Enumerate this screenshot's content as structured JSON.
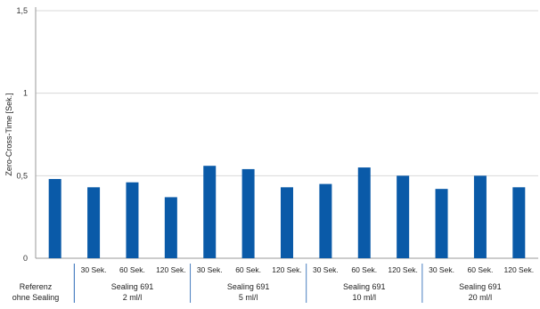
{
  "chart_data": {
    "type": "bar",
    "ylabel": "Zero-Cross-Time [Sek.]",
    "ylim": [
      0,
      1.5
    ],
    "yticks": [
      {
        "value": 0,
        "label": "0"
      },
      {
        "value": 0.5,
        "label": "0,5"
      },
      {
        "value": 1,
        "label": "1"
      },
      {
        "value": 1.5,
        "label": "1,5"
      }
    ],
    "grid": true,
    "bar_color": "#0a5aa8",
    "categories": [
      "",
      "30 Sek.",
      "60 Sek.",
      "120 Sek.",
      "30 Sek.",
      "60 Sek.",
      "120 Sek.",
      "30 Sek.",
      "60 Sek.",
      "120 Sek.",
      "30 Sek.",
      "60 Sek.",
      "120 Sek."
    ],
    "values": [
      0.48,
      0.43,
      0.46,
      0.37,
      0.56,
      0.54,
      0.43,
      0.45,
      0.55,
      0.5,
      0.42,
      0.5,
      0.43
    ],
    "groups": [
      {
        "lines": [
          "Referenz",
          "ohne Sealing"
        ],
        "start": 0,
        "end": 0
      },
      {
        "lines": [
          "Sealing 691",
          "2 ml/l"
        ],
        "start": 1,
        "end": 3
      },
      {
        "lines": [
          "Sealing 691",
          "5 ml/l"
        ],
        "start": 4,
        "end": 6
      },
      {
        "lines": [
          "Sealing 691",
          "10 ml/l"
        ],
        "start": 7,
        "end": 9
      },
      {
        "lines": [
          "Sealing 691",
          "20 ml/l"
        ],
        "start": 10,
        "end": 12
      }
    ]
  }
}
